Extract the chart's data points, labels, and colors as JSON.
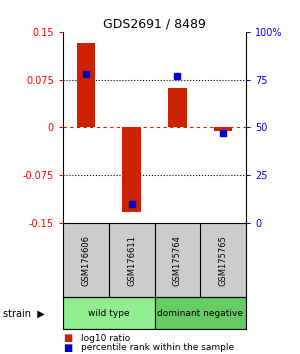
{
  "title": "GDS2691 / 8489",
  "samples": [
    "GSM176606",
    "GSM176611",
    "GSM175764",
    "GSM175765"
  ],
  "log10_ratio": [
    0.132,
    -0.132,
    0.062,
    -0.005
  ],
  "percentile_rank": [
    78,
    10,
    77,
    47
  ],
  "groups": [
    {
      "label": "wild type",
      "samples": [
        0,
        1
      ],
      "color": "#90EE90"
    },
    {
      "label": "dominant negative",
      "samples": [
        2,
        3
      ],
      "color": "#66CC66"
    }
  ],
  "group_label": "strain",
  "ylim": [
    -0.15,
    0.15
  ],
  "yticks_left": [
    -0.15,
    -0.075,
    0,
    0.075,
    0.15
  ],
  "ytick_labels_left": [
    "-0.15",
    "-0.075",
    "0",
    "0.075",
    "0.15"
  ],
  "yticks_right": [
    0,
    25,
    50,
    75,
    100
  ],
  "ytick_labels_right": [
    "0",
    "25",
    "50",
    "75",
    "100%"
  ],
  "hlines_dotted": [
    0.075,
    -0.075
  ],
  "hline_dashed_color": "#CC2200",
  "bar_color": "#CC2200",
  "dot_color": "#0000CC",
  "sample_box_color": "#cccccc",
  "legend_items": [
    {
      "color": "#CC2200",
      "label": "log10 ratio"
    },
    {
      "color": "#0000CC",
      "label": "percentile rank within the sample"
    }
  ],
  "bar_width": 0.4,
  "background_color": "#ffffff"
}
